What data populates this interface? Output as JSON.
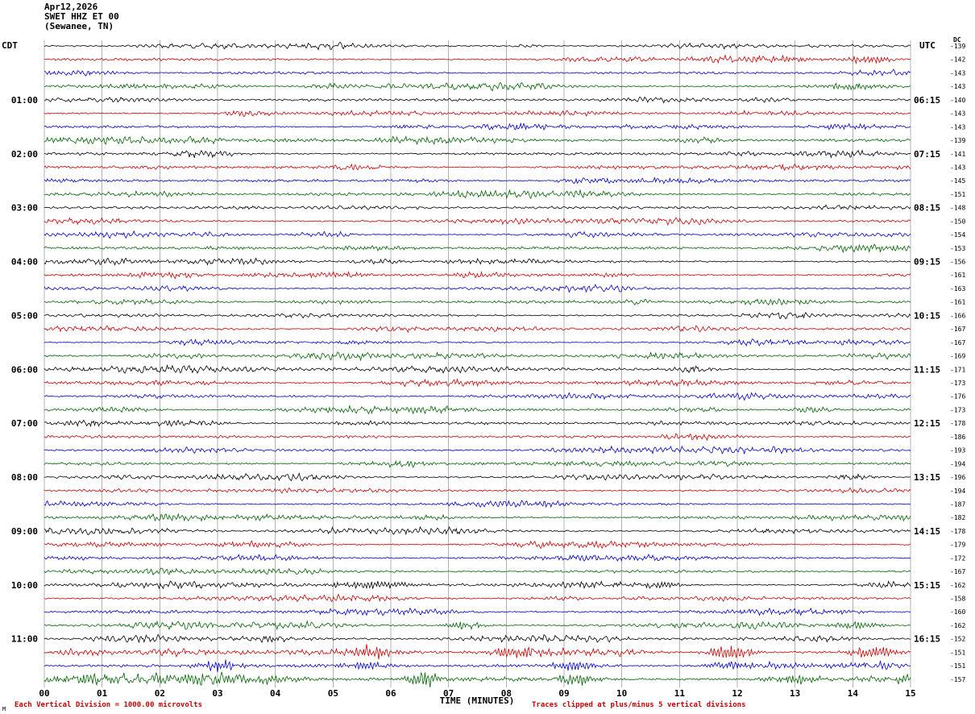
{
  "header": {
    "date": "Apr12,2026",
    "station": "SWET HHZ ET 00",
    "location": "(Sewanee, TN)"
  },
  "axes": {
    "left_header": "CDT",
    "right_header": "UTC",
    "dc_header": "DC",
    "x_label": "TIME (MINUTES)",
    "x_ticks": [
      "00",
      "01",
      "02",
      "03",
      "04",
      "05",
      "06",
      "07",
      "08",
      "09",
      "10",
      "11",
      "12",
      "13",
      "14",
      "15"
    ]
  },
  "footer": {
    "left": "Each Vertical Division = 1000.00 microvolts",
    "right": "Traces clipped at plus/minus 5 vertical divisions",
    "corner_mark": "M"
  },
  "colors": {
    "grid": "#808080",
    "text": "#000000",
    "footer_text": "#cc0000"
  },
  "chart_data": {
    "type": "line",
    "title": "SWET HHZ ET 00 (Sewanee, TN) Apr12,2026",
    "xlabel": "TIME (MINUTES)",
    "x_range": [
      0,
      15
    ],
    "minutes_per_line": 15,
    "traces_per_hour": 4,
    "trace_colors": [
      "#000000",
      "#cc0000",
      "#0000cc",
      "#006600"
    ],
    "rows": [
      {
        "left": "",
        "right": "",
        "dc": "-139",
        "amp": 1.8,
        "bursts": []
      },
      {
        "left": "",
        "right": "",
        "dc": "-142",
        "amp": 1.9,
        "bursts": [
          {
            "m": 12.9,
            "a": 3.5,
            "w": 0.3
          },
          {
            "m": 14.3,
            "a": 3.5,
            "w": 0.25
          }
        ]
      },
      {
        "left": "",
        "right": "",
        "dc": "-143",
        "amp": 1.8,
        "bursts": []
      },
      {
        "left": "",
        "right": "",
        "dc": "-143",
        "amp": 2.1,
        "bursts": [
          {
            "m": 1.6,
            "a": 2.5,
            "w": 0.5
          },
          {
            "m": 13.9,
            "a": 3.0,
            "w": 0.4
          }
        ]
      },
      {
        "left": "01:00",
        "right": "06:15",
        "dc": "-140",
        "amp": 1.9,
        "bursts": []
      },
      {
        "left": "",
        "right": "",
        "dc": "-143",
        "amp": 1.8,
        "bursts": []
      },
      {
        "left": "",
        "right": "",
        "dc": "-143",
        "amp": 1.8,
        "bursts": []
      },
      {
        "left": "",
        "right": "",
        "dc": "-139",
        "amp": 2.0,
        "bursts": []
      },
      {
        "left": "02:00",
        "right": "07:15",
        "dc": "-141",
        "amp": 1.9,
        "bursts": []
      },
      {
        "left": "",
        "right": "",
        "dc": "-143",
        "amp": 1.8,
        "bursts": []
      },
      {
        "left": "",
        "right": "",
        "dc": "-145",
        "amp": 1.8,
        "bursts": []
      },
      {
        "left": "",
        "right": "",
        "dc": "-151",
        "amp": 2.0,
        "bursts": []
      },
      {
        "left": "03:00",
        "right": "08:15",
        "dc": "-148",
        "amp": 1.9,
        "bursts": []
      },
      {
        "left": "",
        "right": "",
        "dc": "-150",
        "amp": 1.8,
        "bursts": []
      },
      {
        "left": "",
        "right": "",
        "dc": "-154",
        "amp": 1.8,
        "bursts": []
      },
      {
        "left": "",
        "right": "",
        "dc": "-153",
        "amp": 2.0,
        "bursts": []
      },
      {
        "left": "04:00",
        "right": "09:15",
        "dc": "-156",
        "amp": 1.9,
        "bursts": []
      },
      {
        "left": "",
        "right": "",
        "dc": "-161",
        "amp": 1.8,
        "bursts": []
      },
      {
        "left": "",
        "right": "",
        "dc": "-163",
        "amp": 1.8,
        "bursts": []
      },
      {
        "left": "",
        "right": "",
        "dc": "-161",
        "amp": 2.0,
        "bursts": []
      },
      {
        "left": "05:00",
        "right": "10:15",
        "dc": "-166",
        "amp": 1.9,
        "bursts": []
      },
      {
        "left": "",
        "right": "",
        "dc": "-167",
        "amp": 1.8,
        "bursts": []
      },
      {
        "left": "",
        "right": "",
        "dc": "-167",
        "amp": 1.8,
        "bursts": [
          {
            "m": 5.3,
            "a": 2.5,
            "w": 0.15
          }
        ]
      },
      {
        "left": "",
        "right": "",
        "dc": "-169",
        "amp": 2.0,
        "bursts": []
      },
      {
        "left": "06:00",
        "right": "11:15",
        "dc": "-171",
        "amp": 2.1,
        "bursts": []
      },
      {
        "left": "",
        "right": "",
        "dc": "-173",
        "amp": 1.8,
        "bursts": []
      },
      {
        "left": "",
        "right": "",
        "dc": "-176",
        "amp": 1.8,
        "bursts": []
      },
      {
        "left": "",
        "right": "",
        "dc": "-173",
        "amp": 2.0,
        "bursts": []
      },
      {
        "left": "07:00",
        "right": "12:15",
        "dc": "-178",
        "amp": 1.9,
        "bursts": []
      },
      {
        "left": "",
        "right": "",
        "dc": "-186",
        "amp": 1.8,
        "bursts": []
      },
      {
        "left": "",
        "right": "",
        "dc": "-193",
        "amp": 1.8,
        "bursts": []
      },
      {
        "left": "",
        "right": "",
        "dc": "-194",
        "amp": 2.0,
        "bursts": []
      },
      {
        "left": "08:00",
        "right": "13:15",
        "dc": "-196",
        "amp": 1.9,
        "bursts": []
      },
      {
        "left": "",
        "right": "",
        "dc": "-194",
        "amp": 1.8,
        "bursts": []
      },
      {
        "left": "",
        "right": "",
        "dc": "-187",
        "amp": 1.8,
        "bursts": []
      },
      {
        "left": "",
        "right": "",
        "dc": "-182",
        "amp": 2.0,
        "bursts": []
      },
      {
        "left": "09:00",
        "right": "14:15",
        "dc": "-178",
        "amp": 2.0,
        "bursts": []
      },
      {
        "left": "",
        "right": "",
        "dc": "-179",
        "amp": 1.8,
        "bursts": []
      },
      {
        "left": "",
        "right": "",
        "dc": "-172",
        "amp": 1.8,
        "bursts": []
      },
      {
        "left": "",
        "right": "",
        "dc": "-167",
        "amp": 2.0,
        "bursts": []
      },
      {
        "left": "10:00",
        "right": "15:15",
        "dc": "-162",
        "amp": 2.0,
        "bursts": [
          {
            "m": 5.7,
            "a": 5.0,
            "w": 0.5
          },
          {
            "m": 10.6,
            "a": 3.5,
            "w": 0.3
          }
        ]
      },
      {
        "left": "",
        "right": "",
        "dc": "-158",
        "amp": 1.8,
        "bursts": []
      },
      {
        "left": "",
        "right": "",
        "dc": "-160",
        "amp": 1.8,
        "bursts": []
      },
      {
        "left": "",
        "right": "",
        "dc": "-162",
        "amp": 2.1,
        "bursts": [
          {
            "m": 7.3,
            "a": 4.5,
            "w": 0.25
          },
          {
            "m": 14.1,
            "a": 4.5,
            "w": 0.3
          }
        ]
      },
      {
        "left": "11:00",
        "right": "16:15",
        "dc": "-152",
        "amp": 2.0,
        "bursts": [
          {
            "m": 3.9,
            "a": 3.5,
            "w": 0.15
          }
        ]
      },
      {
        "left": "",
        "right": "",
        "dc": "-151",
        "amp": 2.0,
        "bursts": [
          {
            "m": 5.6,
            "a": 7.0,
            "w": 0.3
          },
          {
            "m": 8.2,
            "a": 6.0,
            "w": 0.35
          },
          {
            "m": 11.9,
            "a": 7.0,
            "w": 0.3
          },
          {
            "m": 14.4,
            "a": 6.0,
            "w": 0.3
          }
        ]
      },
      {
        "left": "",
        "right": "",
        "dc": "-151",
        "amp": 2.0,
        "bursts": [
          {
            "m": 3.0,
            "a": 6.0,
            "w": 0.3
          },
          {
            "m": 5.5,
            "a": 5.0,
            "w": 0.3
          },
          {
            "m": 9.2,
            "a": 5.5,
            "w": 0.25
          },
          {
            "m": 11.9,
            "a": 4.5,
            "w": 0.3
          }
        ]
      },
      {
        "left": "",
        "right": "",
        "dc": "-157",
        "amp": 3.0,
        "bursts": [
          {
            "m": 0.5,
            "a": 4.0,
            "w": 0.3
          },
          {
            "m": 2.9,
            "a": 6.0,
            "w": 0.35
          },
          {
            "m": 6.6,
            "a": 7.0,
            "w": 0.3
          },
          {
            "m": 9.2,
            "a": 5.5,
            "w": 0.3
          },
          {
            "m": 13.0,
            "a": 5.0,
            "w": 0.35
          }
        ]
      }
    ]
  }
}
